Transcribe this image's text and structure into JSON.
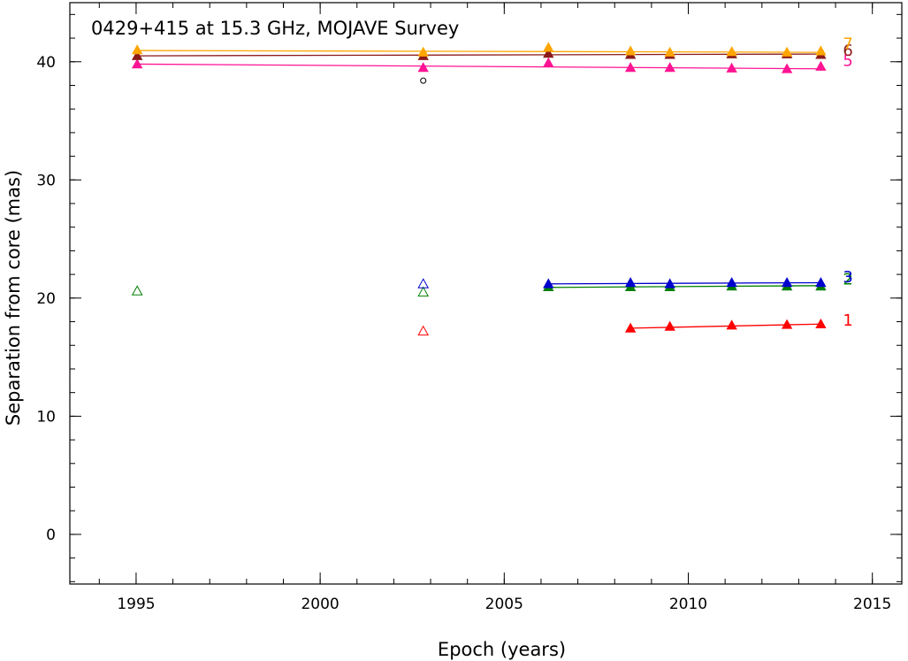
{
  "chart_data": {
    "type": "scatter",
    "title": "0429+415 at 15.3 GHz, MOJAVE Survey",
    "xlabel": "Epoch (years)",
    "ylabel": "Separation from core (mas)",
    "xlim": [
      1993.2,
      2015.8
    ],
    "ylim": [
      -4.2,
      45
    ],
    "xticks": [
      1995,
      2000,
      2005,
      2010,
      2015
    ],
    "yticks": [
      0,
      10,
      20,
      30,
      40
    ],
    "x_minor_step": 1,
    "y_minor_step": 2,
    "grid": false,
    "series": [
      {
        "name": "1",
        "label": "1",
        "color": "#ff0000",
        "filled": {
          "x": [
            2008.43,
            2009.5,
            2011.18,
            2012.68,
            2013.6
          ],
          "y": [
            17.45,
            17.6,
            17.7,
            17.75,
            17.8
          ]
        },
        "fit": {
          "x": [
            2008.43,
            2013.6
          ],
          "y": [
            17.45,
            17.8
          ]
        },
        "open": {
          "x": [
            2002.8
          ],
          "y": [
            17.2
          ]
        },
        "label_at": [
          2014.2,
          18.1
        ]
      },
      {
        "name": "2",
        "label": "2",
        "color": "#008000",
        "filled": {
          "x": [
            2006.2,
            2008.43,
            2009.5,
            2011.18,
            2012.68,
            2013.6
          ],
          "y": [
            20.95,
            20.95,
            20.95,
            21.0,
            21.0,
            21.0
          ]
        },
        "fit": {
          "x": [
            2006.2,
            2013.6
          ],
          "y": [
            20.9,
            21.05
          ]
        },
        "open": {
          "x": [
            1995.03,
            2002.8
          ],
          "y": [
            20.6,
            20.5
          ]
        },
        "label_at": [
          2014.2,
          21.6
        ]
      },
      {
        "name": "3",
        "label": "3",
        "color": "#0000cc",
        "filled": {
          "x": [
            2006.2,
            2008.43,
            2009.5,
            2011.18,
            2012.68,
            2013.6
          ],
          "y": [
            21.2,
            21.3,
            21.2,
            21.3,
            21.3,
            21.3
          ]
        },
        "fit": {
          "x": [
            2006.2,
            2013.6
          ],
          "y": [
            21.2,
            21.3
          ]
        },
        "open": {
          "x": [
            2002.8
          ],
          "y": [
            21.2
          ]
        },
        "label_at": [
          2014.2,
          21.8
        ]
      },
      {
        "name": "5",
        "label": "5",
        "color": "#ff1493",
        "filled": {
          "x": [
            1995.03,
            2002.8,
            2006.2,
            2008.43,
            2009.5,
            2011.18,
            2012.68,
            2013.6
          ],
          "y": [
            39.8,
            39.5,
            39.9,
            39.5,
            39.5,
            39.45,
            39.4,
            39.6
          ]
        },
        "fit": {
          "x": [
            1995.03,
            2013.6
          ],
          "y": [
            39.8,
            39.4
          ]
        },
        "open": {
          "x": [],
          "y": []
        },
        "label_at": [
          2014.2,
          40.1
        ]
      },
      {
        "name": "6",
        "label": "6",
        "color": "#8b1a1a",
        "filled": {
          "x": [
            1995.03,
            2002.8,
            2006.2,
            2008.43,
            2009.5,
            2011.18,
            2012.68,
            2013.6
          ],
          "y": [
            40.5,
            40.5,
            40.7,
            40.6,
            40.6,
            40.65,
            40.65,
            40.6
          ]
        },
        "fit": {
          "x": [
            1995.03,
            2013.6
          ],
          "y": [
            40.5,
            40.65
          ]
        },
        "open": {
          "x": [],
          "y": []
        },
        "label_at": [
          2014.2,
          40.95
        ]
      },
      {
        "name": "7",
        "label": "7",
        "color": "#ffa500",
        "filled": {
          "x": [
            1995.03,
            2002.8,
            2006.2,
            2008.43,
            2009.5,
            2011.18,
            2012.68,
            2013.6
          ],
          "y": [
            41.0,
            40.8,
            41.2,
            40.9,
            40.8,
            40.85,
            40.8,
            40.9
          ]
        },
        "fit": {
          "x": [
            1995.03,
            2013.6
          ],
          "y": [
            40.95,
            40.8
          ]
        },
        "open": {
          "x": [],
          "y": []
        },
        "label_at": [
          2014.2,
          41.5
        ]
      }
    ],
    "other_points": [
      {
        "marker": "open-circle",
        "color": "#000000",
        "x": 2002.8,
        "y": 38.4
      }
    ]
  }
}
